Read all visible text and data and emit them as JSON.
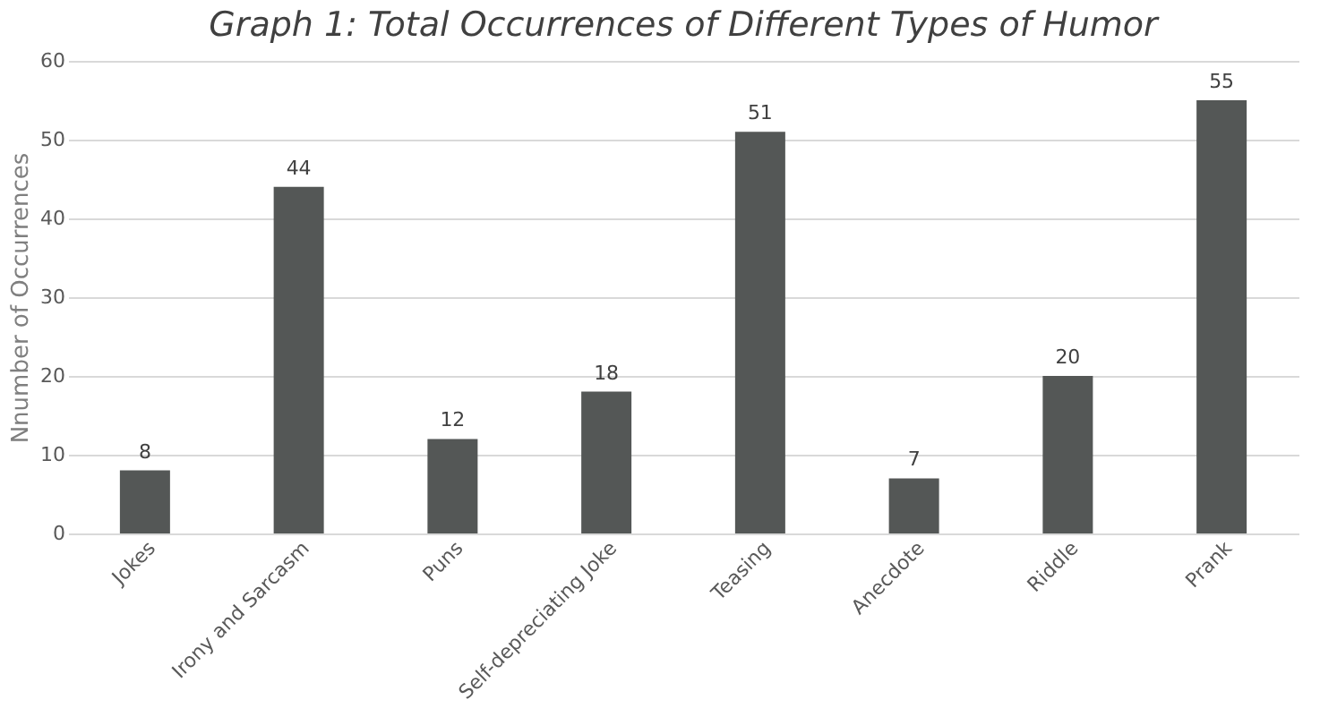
{
  "chart_data": {
    "type": "bar",
    "title": "Graph 1: Total Occurrences of Different Types of Humor",
    "ylabel": "Nnumber of Occurrences",
    "categories": [
      "Jokes",
      "Irony and Sarcasm",
      "Puns",
      "Self-depreciating Joke",
      "Teasing",
      "Anecdote",
      "Riddle",
      "Prank"
    ],
    "values": [
      8,
      44,
      12,
      18,
      51,
      7,
      20,
      55
    ],
    "color": "#545756",
    "ylim": [
      0,
      60
    ],
    "yticks": [
      0,
      10,
      20,
      30,
      40,
      50,
      60
    ],
    "grid": "y",
    "data_labels": true
  }
}
